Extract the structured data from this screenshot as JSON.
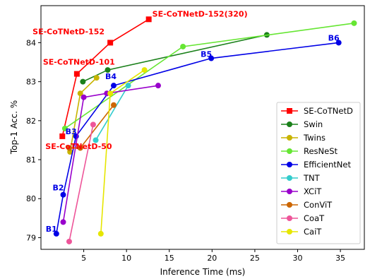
{
  "chart_data": {
    "type": "line",
    "xlabel": "Inference Time (ms)",
    "ylabel": "Top-1 Acc. %",
    "xlim": [
      0,
      37.8
    ],
    "ylim": [
      78.7,
      84.95
    ],
    "xticks": [
      5,
      10,
      15,
      20,
      25,
      30,
      35
    ],
    "yticks": [
      79,
      80,
      81,
      82,
      83,
      84
    ],
    "grid": false,
    "legend_position": "lower-right",
    "series": [
      {
        "name": "SE-CoTNetD",
        "color": "#ff0000",
        "marker": "square",
        "points": [
          [
            2.5,
            81.6
          ],
          [
            4.2,
            83.2
          ],
          [
            8.1,
            84.0
          ],
          [
            12.6,
            84.6
          ]
        ]
      },
      {
        "name": "Swin",
        "color": "#1a801a",
        "marker": "circle",
        "points": [
          [
            4.9,
            83.0
          ],
          [
            7.8,
            83.3
          ],
          [
            26.4,
            84.2
          ]
        ]
      },
      {
        "name": "Twins",
        "color": "#c8b400",
        "marker": "circle",
        "points": [
          [
            3.4,
            81.2
          ],
          [
            4.6,
            82.7
          ],
          [
            6.5,
            83.1
          ]
        ]
      },
      {
        "name": "ResNeSt",
        "color": "#66e633",
        "marker": "circle",
        "points": [
          [
            2.8,
            81.8
          ],
          [
            16.6,
            83.9
          ],
          [
            36.6,
            84.5
          ]
        ]
      },
      {
        "name": "EfficientNet",
        "color": "#0000e6",
        "marker": "circle",
        "points": [
          [
            1.8,
            79.1
          ],
          [
            2.6,
            80.1
          ],
          [
            4.1,
            81.6
          ],
          [
            8.5,
            82.9
          ],
          [
            19.9,
            83.6
          ],
          [
            34.8,
            84.0
          ]
        ]
      },
      {
        "name": "TNT",
        "color": "#33cccc",
        "marker": "circle",
        "points": [
          [
            6.4,
            81.5
          ],
          [
            10.2,
            82.9
          ]
        ]
      },
      {
        "name": "XCiT",
        "color": "#9900cc",
        "marker": "circle",
        "points": [
          [
            2.6,
            79.4
          ],
          [
            5.0,
            82.6
          ],
          [
            7.7,
            82.7
          ],
          [
            13.7,
            82.9
          ]
        ]
      },
      {
        "name": "ConViT",
        "color": "#cc6600",
        "marker": "circle",
        "points": [
          [
            3.3,
            81.3
          ],
          [
            4.6,
            81.3
          ],
          [
            8.5,
            82.4
          ]
        ]
      },
      {
        "name": "CoaT",
        "color": "#ee5599",
        "marker": "circle",
        "points": [
          [
            3.3,
            78.9
          ],
          [
            6.1,
            81.9
          ]
        ]
      },
      {
        "name": "CaiT",
        "color": "#e6e600",
        "marker": "circle",
        "points": [
          [
            7.0,
            79.1
          ],
          [
            8.1,
            82.7
          ],
          [
            12.1,
            83.3
          ]
        ]
      }
    ],
    "annotations": [
      {
        "text": "SE-CoTNetD-152(320)",
        "x": 12.6,
        "y": 84.6,
        "color": "#ff0000"
      },
      {
        "text": "SE-CoTNetD-152",
        "x": 8.1,
        "y": 84.0,
        "color": "#ff0000"
      },
      {
        "text": "SE-CoTNetD-101",
        "x": 4.2,
        "y": 83.2,
        "color": "#ff0000"
      },
      {
        "text": "SE-CoTNetD-50",
        "x": 2.5,
        "y": 81.6,
        "color": "#ff0000"
      },
      {
        "text": "B1",
        "x": 1.8,
        "y": 79.1,
        "color": "#0000e6"
      },
      {
        "text": "B2",
        "x": 2.6,
        "y": 80.1,
        "color": "#0000e6"
      },
      {
        "text": "B3",
        "x": 4.1,
        "y": 81.6,
        "color": "#0000e6"
      },
      {
        "text": "B4",
        "x": 8.5,
        "y": 82.9,
        "color": "#0000e6"
      },
      {
        "text": "B5",
        "x": 19.9,
        "y": 83.6,
        "color": "#0000e6"
      },
      {
        "text": "B6",
        "x": 34.8,
        "y": 84.0,
        "color": "#0000e6"
      }
    ]
  }
}
